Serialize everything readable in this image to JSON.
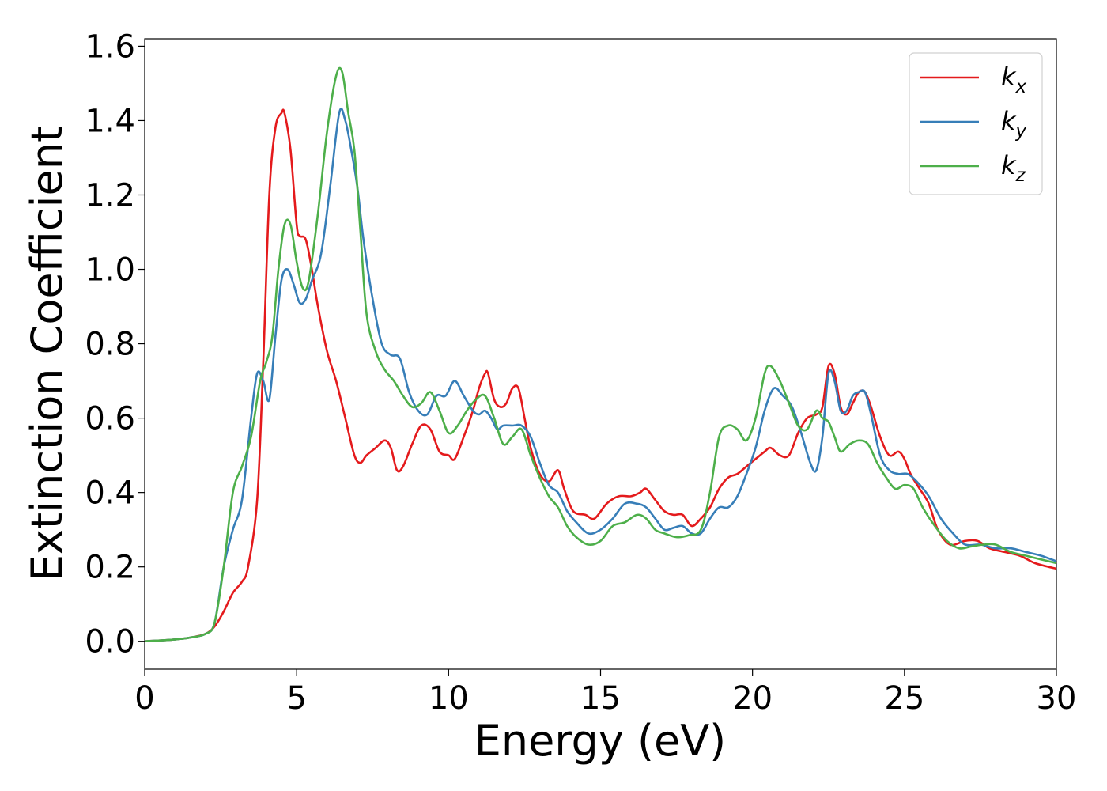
{
  "chart_data": {
    "type": "line",
    "xlabel": "Energy (eV)",
    "ylabel": "Extinction Coefficient",
    "xlim": [
      0,
      30
    ],
    "ylim": [
      -0.075,
      1.62
    ],
    "xticks": [
      "0",
      "5",
      "10",
      "15",
      "20",
      "25",
      "30"
    ],
    "yticks": [
      "0.0",
      "0.2",
      "0.4",
      "0.6",
      "0.8",
      "1.0",
      "1.2",
      "1.4",
      "1.6"
    ],
    "grid": false,
    "legend_position": "top-right",
    "series": [
      {
        "name": "k",
        "subscript": "x",
        "color": "#e41a1c",
        "x": [
          0,
          1,
          1.5,
          2,
          2.3,
          2.6,
          2.9,
          3.2,
          3.4,
          3.7,
          3.9,
          4.1,
          4.3,
          4.5,
          4.6,
          4.8,
          5.0,
          5.1,
          5.3,
          5.5,
          5.7,
          6.0,
          6.3,
          6.6,
          6.9,
          7.1,
          7.3,
          7.6,
          7.9,
          8.1,
          8.3,
          8.5,
          8.8,
          9.1,
          9.4,
          9.7,
          10.0,
          10.2,
          10.5,
          10.8,
          11.0,
          11.2,
          11.3,
          11.5,
          11.7,
          11.9,
          12.1,
          12.3,
          12.5,
          12.7,
          13.0,
          13.3,
          13.6,
          13.8,
          14.1,
          14.5,
          14.8,
          15.2,
          15.6,
          16.0,
          16.3,
          16.5,
          16.8,
          17.1,
          17.4,
          17.7,
          18.0,
          18.3,
          18.6,
          18.9,
          19.2,
          19.5,
          19.8,
          20.1,
          20.4,
          20.6,
          20.9,
          21.2,
          21.5,
          21.8,
          22.1,
          22.3,
          22.5,
          22.7,
          22.9,
          23.1,
          23.3,
          23.5,
          23.7,
          23.9,
          24.2,
          24.5,
          24.8,
          25.0,
          25.2,
          25.5,
          25.8,
          26.1,
          26.5,
          27.0,
          27.4,
          27.8,
          28.3,
          28.8,
          29.3,
          30.0
        ],
        "y": [
          0,
          0.005,
          0.01,
          0.02,
          0.04,
          0.08,
          0.13,
          0.16,
          0.2,
          0.38,
          0.75,
          1.2,
          1.38,
          1.42,
          1.42,
          1.32,
          1.12,
          1.09,
          1.08,
          1.0,
          0.9,
          0.78,
          0.7,
          0.6,
          0.5,
          0.48,
          0.5,
          0.52,
          0.54,
          0.52,
          0.46,
          0.47,
          0.53,
          0.58,
          0.57,
          0.51,
          0.5,
          0.49,
          0.55,
          0.62,
          0.68,
          0.72,
          0.72,
          0.65,
          0.63,
          0.64,
          0.68,
          0.68,
          0.6,
          0.52,
          0.45,
          0.43,
          0.46,
          0.41,
          0.35,
          0.34,
          0.33,
          0.37,
          0.39,
          0.39,
          0.4,
          0.41,
          0.38,
          0.35,
          0.34,
          0.34,
          0.31,
          0.33,
          0.36,
          0.41,
          0.44,
          0.45,
          0.47,
          0.49,
          0.51,
          0.52,
          0.5,
          0.5,
          0.56,
          0.6,
          0.61,
          0.63,
          0.74,
          0.72,
          0.63,
          0.61,
          0.64,
          0.67,
          0.67,
          0.63,
          0.55,
          0.5,
          0.51,
          0.49,
          0.45,
          0.41,
          0.37,
          0.3,
          0.26,
          0.27,
          0.27,
          0.25,
          0.24,
          0.23,
          0.21,
          0.195
        ]
      },
      {
        "name": "k",
        "subscript": "y",
        "color": "#377eb8",
        "x": [
          0,
          1,
          1.5,
          2,
          2.3,
          2.6,
          2.9,
          3.2,
          3.5,
          3.7,
          3.9,
          4.1,
          4.3,
          4.5,
          4.7,
          4.9,
          5.1,
          5.3,
          5.5,
          5.8,
          6.1,
          6.4,
          6.6,
          6.8,
          7.0,
          7.2,
          7.5,
          7.8,
          8.1,
          8.4,
          8.7,
          9.0,
          9.3,
          9.6,
          9.9,
          10.2,
          10.5,
          10.8,
          11.0,
          11.2,
          11.4,
          11.6,
          11.8,
          12.1,
          12.4,
          12.7,
          13.0,
          13.3,
          13.6,
          13.9,
          14.2,
          14.6,
          15.0,
          15.4,
          15.8,
          16.2,
          16.5,
          16.8,
          17.1,
          17.4,
          17.7,
          18.0,
          18.3,
          18.6,
          18.9,
          19.2,
          19.5,
          19.8,
          20.1,
          20.4,
          20.7,
          21.0,
          21.3,
          21.6,
          21.9,
          22.1,
          22.3,
          22.5,
          22.7,
          22.9,
          23.1,
          23.3,
          23.5,
          23.7,
          23.9,
          24.2,
          24.5,
          24.8,
          25.1,
          25.4,
          25.8,
          26.2,
          26.6,
          27.0,
          27.5,
          28.0,
          28.5,
          29.0,
          29.5,
          30.0
        ],
        "y": [
          0,
          0.005,
          0.01,
          0.02,
          0.05,
          0.2,
          0.3,
          0.38,
          0.6,
          0.72,
          0.7,
          0.65,
          0.82,
          0.97,
          1.0,
          0.96,
          0.91,
          0.92,
          0.97,
          1.04,
          1.22,
          1.42,
          1.4,
          1.32,
          1.22,
          1.08,
          0.92,
          0.8,
          0.77,
          0.76,
          0.67,
          0.62,
          0.61,
          0.66,
          0.66,
          0.7,
          0.66,
          0.62,
          0.61,
          0.62,
          0.6,
          0.57,
          0.58,
          0.58,
          0.58,
          0.55,
          0.48,
          0.42,
          0.4,
          0.35,
          0.32,
          0.29,
          0.3,
          0.33,
          0.37,
          0.37,
          0.36,
          0.33,
          0.3,
          0.305,
          0.31,
          0.29,
          0.29,
          0.33,
          0.36,
          0.36,
          0.39,
          0.45,
          0.52,
          0.62,
          0.68,
          0.66,
          0.63,
          0.56,
          0.48,
          0.46,
          0.55,
          0.72,
          0.7,
          0.62,
          0.62,
          0.66,
          0.67,
          0.67,
          0.61,
          0.5,
          0.46,
          0.45,
          0.45,
          0.43,
          0.39,
          0.33,
          0.29,
          0.26,
          0.26,
          0.25,
          0.25,
          0.24,
          0.23,
          0.215
        ]
      },
      {
        "name": "k",
        "subscript": "z",
        "color": "#4daf4a",
        "x": [
          0,
          1,
          1.5,
          2,
          2.3,
          2.6,
          2.9,
          3.2,
          3.5,
          3.8,
          4.0,
          4.2,
          4.4,
          4.6,
          4.8,
          5.0,
          5.2,
          5.4,
          5.7,
          6.0,
          6.3,
          6.5,
          6.7,
          6.9,
          7.1,
          7.3,
          7.6,
          7.9,
          8.2,
          8.5,
          8.8,
          9.1,
          9.4,
          9.7,
          10.0,
          10.3,
          10.6,
          10.9,
          11.2,
          11.5,
          11.8,
          12.1,
          12.4,
          12.7,
          13.0,
          13.3,
          13.6,
          13.9,
          14.2,
          14.6,
          15.0,
          15.4,
          15.8,
          16.2,
          16.5,
          16.8,
          17.1,
          17.5,
          17.9,
          18.3,
          18.6,
          18.9,
          19.2,
          19.5,
          19.8,
          20.1,
          20.4,
          20.6,
          20.9,
          21.2,
          21.5,
          21.8,
          22.1,
          22.3,
          22.5,
          22.7,
          22.9,
          23.2,
          23.5,
          23.8,
          24.1,
          24.4,
          24.7,
          25.0,
          25.3,
          25.6,
          26.0,
          26.4,
          26.8,
          27.2,
          27.6,
          28.0,
          28.5,
          29.0,
          29.5,
          30.0
        ],
        "y": [
          0,
          0.005,
          0.01,
          0.02,
          0.05,
          0.2,
          0.4,
          0.47,
          0.55,
          0.7,
          0.75,
          0.82,
          1.0,
          1.12,
          1.12,
          1.02,
          0.95,
          0.97,
          1.15,
          1.37,
          1.52,
          1.53,
          1.42,
          1.32,
          1.1,
          0.88,
          0.78,
          0.73,
          0.7,
          0.66,
          0.63,
          0.64,
          0.67,
          0.62,
          0.56,
          0.58,
          0.62,
          0.65,
          0.66,
          0.6,
          0.53,
          0.55,
          0.57,
          0.5,
          0.44,
          0.39,
          0.36,
          0.31,
          0.28,
          0.26,
          0.27,
          0.31,
          0.32,
          0.34,
          0.33,
          0.3,
          0.29,
          0.28,
          0.285,
          0.3,
          0.4,
          0.55,
          0.58,
          0.57,
          0.54,
          0.6,
          0.72,
          0.74,
          0.7,
          0.64,
          0.58,
          0.57,
          0.62,
          0.6,
          0.59,
          0.55,
          0.51,
          0.53,
          0.54,
          0.53,
          0.48,
          0.44,
          0.41,
          0.42,
          0.41,
          0.36,
          0.31,
          0.27,
          0.25,
          0.255,
          0.26,
          0.26,
          0.24,
          0.23,
          0.22,
          0.21
        ]
      }
    ]
  }
}
